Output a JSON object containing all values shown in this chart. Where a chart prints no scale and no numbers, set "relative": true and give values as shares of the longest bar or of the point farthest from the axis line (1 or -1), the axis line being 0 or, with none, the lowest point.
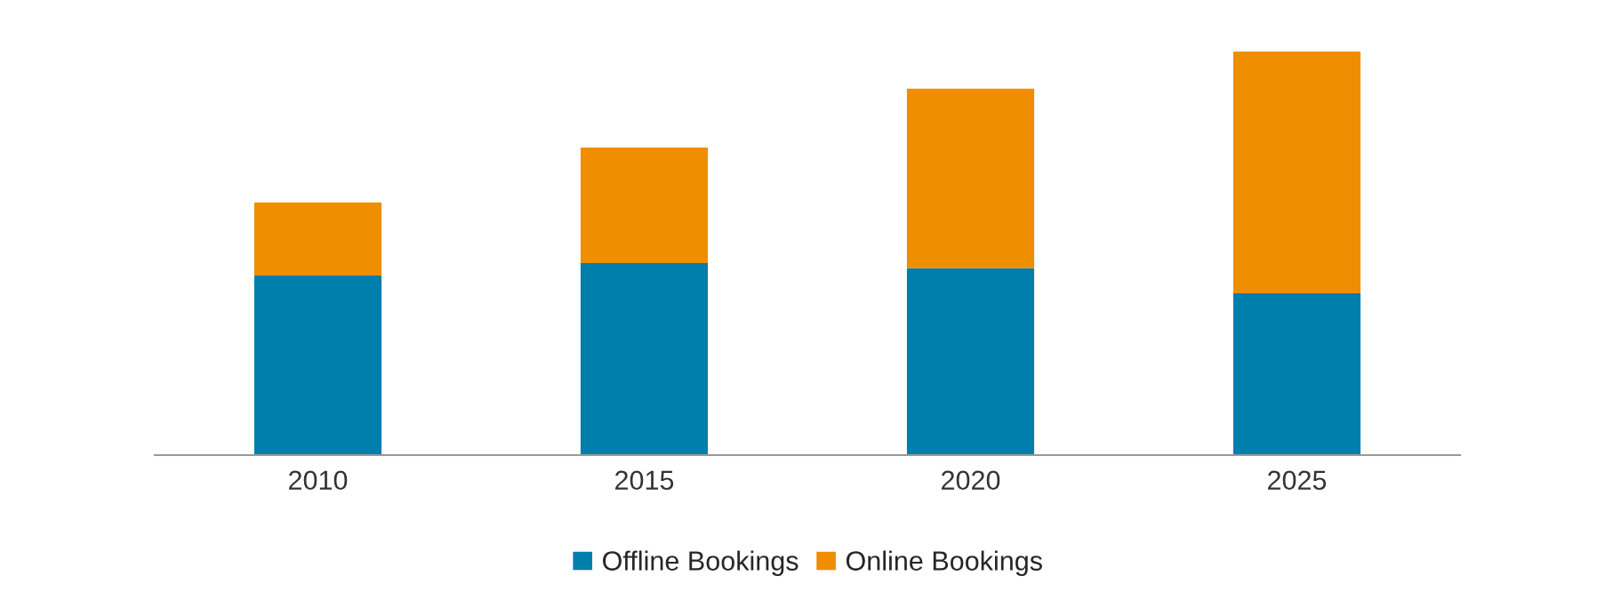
{
  "chart_data": {
    "type": "bar",
    "stacked": true,
    "relative": true,
    "categories": [
      "2010",
      "2015",
      "2020",
      "2025"
    ],
    "series": [
      {
        "name": "Offline Bookings",
        "color": "#007fad",
        "values": [
          0.445,
          0.476,
          0.463,
          0.401
        ]
      },
      {
        "name": "Online Bookings",
        "color": "#ef8e00",
        "values": [
          0.181,
          0.286,
          0.445,
          0.599
        ]
      }
    ],
    "legend": "bottom",
    "grid": false
  }
}
